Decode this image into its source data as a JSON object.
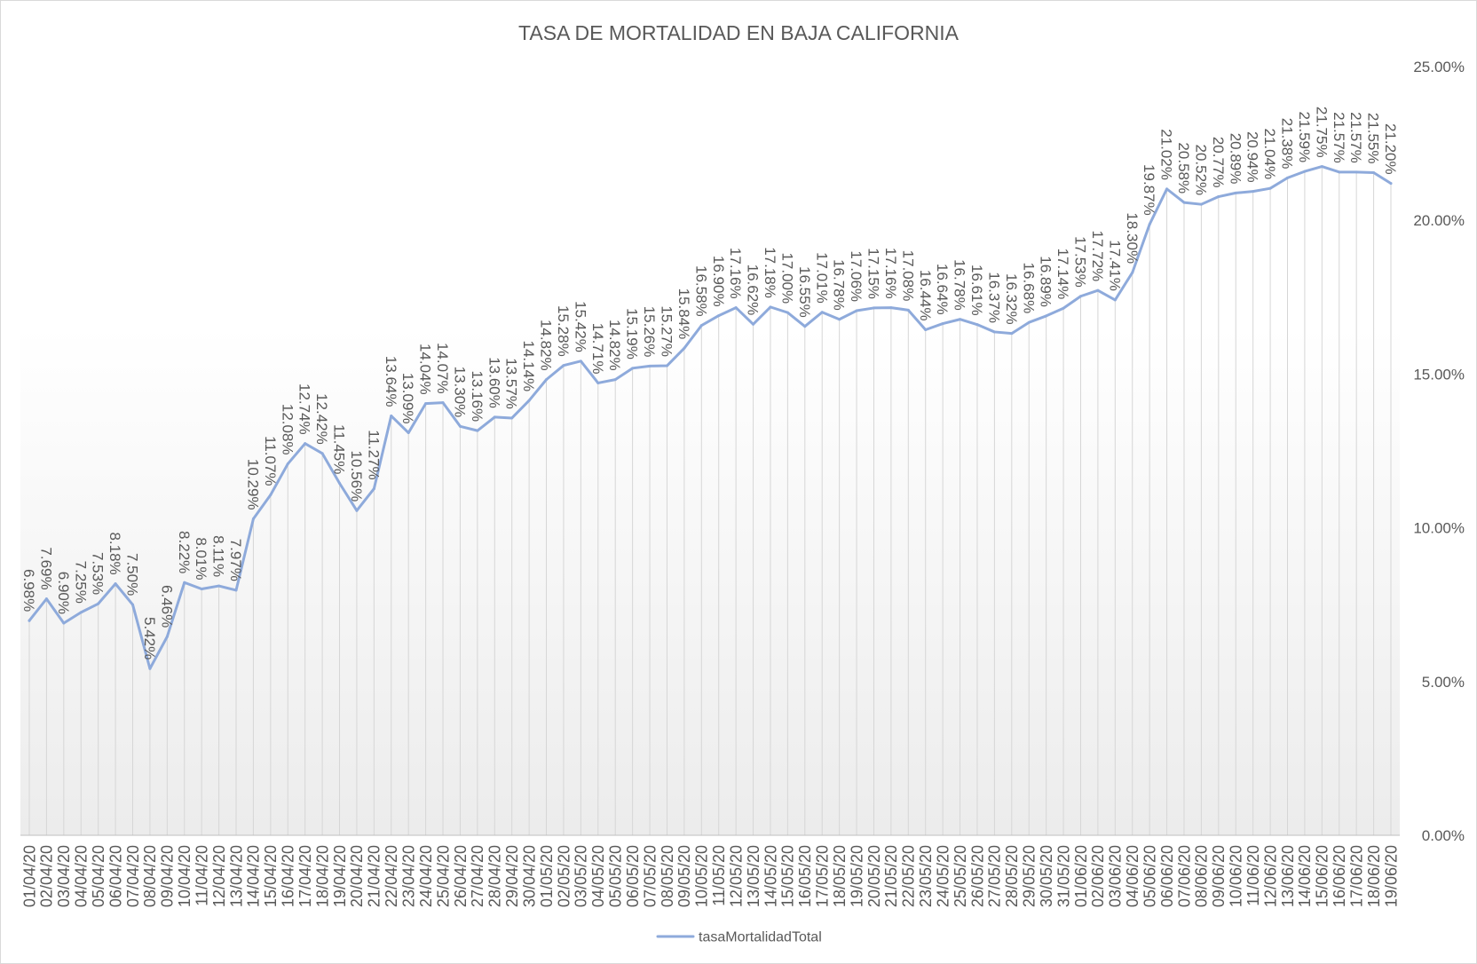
{
  "chart_data": {
    "type": "line",
    "title": "TASA DE MORTALIDAD EN BAJA CALIFORNIA",
    "xlabel": "",
    "ylabel": "",
    "categories": [
      "01/04/20",
      "02/04/20",
      "03/04/20",
      "04/04/20",
      "05/04/20",
      "06/04/20",
      "07/04/20",
      "08/04/20",
      "09/04/20",
      "10/04/20",
      "11/04/20",
      "12/04/20",
      "13/04/20",
      "14/04/20",
      "15/04/20",
      "16/04/20",
      "17/04/20",
      "18/04/20",
      "19/04/20",
      "20/04/20",
      "21/04/20",
      "22/04/20",
      "23/04/20",
      "24/04/20",
      "25/04/20",
      "26/04/20",
      "27/04/20",
      "28/04/20",
      "29/04/20",
      "30/04/20",
      "01/05/20",
      "02/05/20",
      "03/05/20",
      "04/05/20",
      "05/05/20",
      "06/05/20",
      "07/05/20",
      "08/05/20",
      "09/05/20",
      "10/05/20",
      "11/05/20",
      "12/05/20",
      "13/05/20",
      "14/05/20",
      "15/05/20",
      "16/05/20",
      "17/05/20",
      "18/05/20",
      "19/05/20",
      "20/05/20",
      "21/05/20",
      "22/05/20",
      "23/05/20",
      "24/05/20",
      "25/05/20",
      "26/05/20",
      "27/05/20",
      "28/05/20",
      "29/05/20",
      "30/05/20",
      "31/05/20",
      "01/06/20",
      "02/06/20",
      "03/06/20",
      "04/06/20",
      "05/06/20",
      "06/06/20",
      "07/06/20",
      "08/06/20",
      "09/06/20",
      "10/06/20",
      "11/06/20",
      "12/06/20",
      "13/06/20",
      "14/06/20",
      "15/06/20",
      "16/06/20",
      "17/06/20",
      "18/06/20",
      "19/06/20"
    ],
    "series": [
      {
        "name": "tasaMortalidadTotal",
        "color": "#8EAADB",
        "values": [
          6.98,
          7.69,
          6.9,
          7.25,
          7.53,
          8.18,
          7.5,
          5.42,
          6.46,
          8.22,
          8.01,
          8.11,
          7.97,
          10.29,
          11.07,
          12.08,
          12.74,
          12.42,
          11.45,
          10.56,
          11.27,
          13.64,
          13.09,
          14.04,
          14.07,
          13.3,
          13.16,
          13.6,
          13.57,
          14.14,
          14.82,
          15.28,
          15.42,
          14.71,
          14.82,
          15.19,
          15.26,
          15.27,
          15.84,
          16.58,
          16.9,
          17.16,
          16.62,
          17.18,
          17.0,
          16.55,
          17.01,
          16.78,
          17.06,
          17.15,
          17.16,
          17.08,
          16.44,
          16.64,
          16.78,
          16.61,
          16.37,
          16.32,
          16.68,
          16.89,
          17.14,
          17.53,
          17.72,
          17.41,
          18.3,
          19.87,
          21.02,
          20.58,
          20.52,
          20.77,
          20.89,
          20.94,
          21.04,
          21.38,
          21.59,
          21.75,
          21.57,
          21.57,
          21.55,
          21.2
        ]
      }
    ],
    "ylim": [
      0,
      25
    ],
    "yticks": [
      0,
      5,
      10,
      15,
      20,
      25
    ],
    "ytick_labels": [
      "0.00%",
      "5.00%",
      "10.00%",
      "15.00%",
      "20.00%",
      "25.00%"
    ],
    "y_axis_position": "right",
    "data_labels": true,
    "drop_lines": true,
    "grid": false,
    "legend": "bottom"
  }
}
